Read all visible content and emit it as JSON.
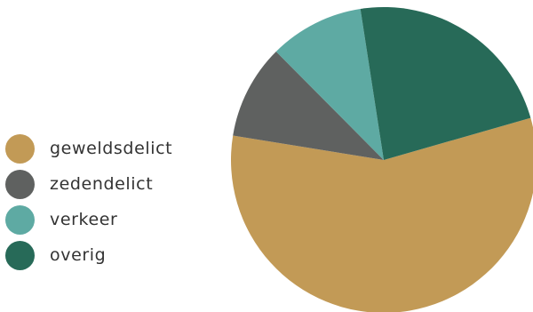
{
  "chart_data": {
    "type": "pie",
    "title": "",
    "legend_position": "left",
    "categories": [
      "geweldsdelict",
      "zedendelict",
      "verkeer",
      "overig"
    ],
    "values": [
      57,
      10,
      10,
      23
    ],
    "unit": "%",
    "colors": [
      "#c29a56",
      "#5f6160",
      "#5eaaa3",
      "#276a58"
    ],
    "start_angle_deg": -16,
    "direction": "clockwise"
  }
}
